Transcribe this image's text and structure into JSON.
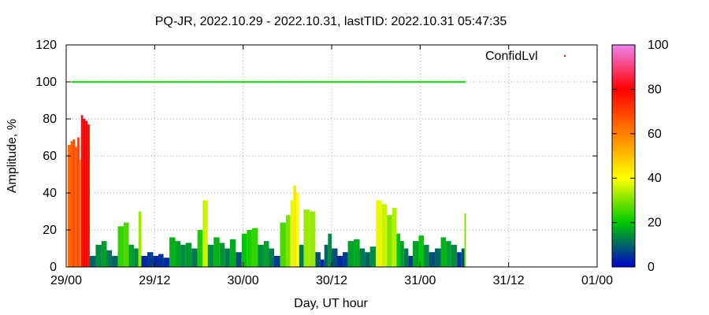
{
  "chart_data": {
    "type": "area",
    "title": "PQ-JR, 2022.10.29 - 2022.10.31, lastTID: 2022.10.31 05:47:35",
    "xlabel": "Day, UT hour",
    "ylabel": "Amplitude, %",
    "xlim": [
      0,
      72
    ],
    "ylim": [
      0,
      120
    ],
    "x_ticks": [
      {
        "x": 0,
        "label": "29/00"
      },
      {
        "x": 12,
        "label": "29/12"
      },
      {
        "x": 24,
        "label": "30/00"
      },
      {
        "x": 36,
        "label": "30/12"
      },
      {
        "x": 48,
        "label": "31/00"
      },
      {
        "x": 60,
        "label": "31/12"
      },
      {
        "x": 72,
        "label": "01/00"
      }
    ],
    "y_ticks": [
      0,
      20,
      40,
      60,
      80,
      100,
      120
    ],
    "grid": true,
    "legend": {
      "label": "ConfidLvl",
      "position": "top-right",
      "marker_color": "#e00000"
    },
    "colorbar": {
      "min": 0,
      "max": 100,
      "ticks": [
        0,
        20,
        40,
        60,
        80,
        100
      ],
      "stops": [
        "#0000cd",
        "#00c800",
        "#ffff00",
        "#ff8000",
        "#ff0000",
        "#ee82ee"
      ]
    },
    "confidence_series": {
      "name": "ConfidLvl",
      "y": 100,
      "x_range": [
        0.7,
        54.0
      ],
      "color": "#22dd22"
    },
    "amplitude_series": {
      "x": [
        0.2,
        0.6,
        0.9,
        1.2,
        1.5,
        1.8,
        2.0,
        2.3,
        2.6,
        2.9,
        3.2,
        4.0,
        4.8,
        5.5,
        6.2,
        7.0,
        7.8,
        8.5,
        9.2,
        9.8,
        10.2,
        11.0,
        11.8,
        12.5,
        13.2,
        14.0,
        14.8,
        15.5,
        16.2,
        17.0,
        17.8,
        18.5,
        19.2,
        20.0,
        20.8,
        21.5,
        22.2,
        23.0,
        23.8,
        24.5,
        25.2,
        26.0,
        26.8,
        27.5,
        28.2,
        29.0,
        29.8,
        30.4,
        30.8,
        31.2,
        31.6,
        32.2,
        33.0,
        33.8,
        34.5,
        35.0,
        35.5,
        36.0,
        36.8,
        37.5,
        38.2,
        39.0,
        39.8,
        40.5,
        41.2,
        42.0,
        42.8,
        43.5,
        44.2,
        44.8,
        45.3,
        45.8,
        46.4,
        47.0,
        47.8,
        48.5,
        49.2,
        50.0,
        50.8,
        51.5,
        52.2,
        53.0,
        53.6,
        54.0
      ],
      "y": [
        66,
        68,
        69,
        65,
        70,
        58,
        82,
        80,
        79,
        77,
        6,
        12,
        14,
        9,
        6,
        22,
        24,
        12,
        10,
        30,
        6,
        8,
        6,
        7,
        5,
        16,
        14,
        12,
        13,
        10,
        20,
        36,
        12,
        16,
        13,
        10,
        15,
        8,
        18,
        20,
        21,
        12,
        14,
        10,
        6,
        24,
        28,
        36,
        44,
        40,
        12,
        31,
        30,
        8,
        4,
        12,
        18,
        10,
        6,
        8,
        14,
        15,
        10,
        8,
        11,
        36,
        34,
        28,
        32,
        18,
        14,
        10,
        6,
        14,
        17,
        12,
        8,
        10,
        16,
        14,
        12,
        8,
        10,
        29
      ],
      "color_metric": [
        64,
        66,
        68,
        65,
        70,
        60,
        82,
        80,
        80,
        78,
        10,
        14,
        16,
        12,
        10,
        24,
        26,
        16,
        14,
        32,
        4,
        6,
        4,
        5,
        4,
        18,
        16,
        14,
        15,
        12,
        22,
        36,
        14,
        18,
        15,
        12,
        17,
        8,
        20,
        22,
        24,
        14,
        16,
        12,
        6,
        26,
        30,
        38,
        44,
        40,
        12,
        32,
        32,
        8,
        3,
        10,
        14,
        8,
        4,
        6,
        16,
        17,
        12,
        10,
        14,
        38,
        36,
        30,
        34,
        20,
        16,
        12,
        6,
        16,
        20,
        14,
        8,
        10,
        18,
        16,
        14,
        6,
        8,
        30
      ]
    }
  }
}
